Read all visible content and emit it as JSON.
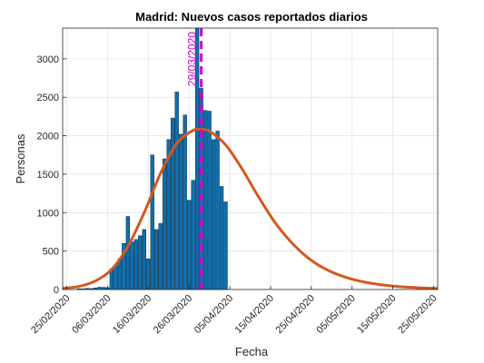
{
  "chart_data": {
    "type": "bar",
    "title": "Madrid: Nuevos casos reportados diarios",
    "xlabel": "Fecha",
    "ylabel": "Personas",
    "ylim": [
      0,
      3400
    ],
    "grid": true,
    "x_ticks": [
      "25/02/2020",
      "06/03/2020",
      "16/03/2020",
      "26/03/2020",
      "05/04/2020",
      "15/04/2020",
      "25/04/2020",
      "05/05/2020",
      "15/05/2020",
      "25/05/2020"
    ],
    "y_ticks": [
      0,
      500,
      1000,
      1500,
      2000,
      2500,
      3000
    ],
    "bars": {
      "color": "#0f6faf",
      "x": [
        "28/02/2020",
        "29/02/2020",
        "01/03/2020",
        "02/03/2020",
        "03/03/2020",
        "04/03/2020",
        "05/03/2020",
        "06/03/2020",
        "07/03/2020",
        "08/03/2020",
        "09/03/2020",
        "10/03/2020",
        "11/03/2020",
        "12/03/2020",
        "13/03/2020",
        "14/03/2020",
        "15/03/2020",
        "16/03/2020",
        "17/03/2020",
        "18/03/2020",
        "19/03/2020",
        "20/03/2020",
        "21/03/2020",
        "22/03/2020",
        "23/03/2020",
        "24/03/2020",
        "25/03/2020",
        "26/03/2020",
        "27/03/2020",
        "28/03/2020",
        "29/03/2020",
        "30/03/2020",
        "31/03/2020",
        "01/04/2020",
        "02/04/2020",
        "03/04/2020",
        "04/04/2020"
      ],
      "values": [
        10,
        8,
        15,
        12,
        20,
        30,
        28,
        25,
        270,
        310,
        400,
        600,
        950,
        620,
        650,
        700,
        780,
        400,
        1750,
        780,
        860,
        1700,
        1950,
        2230,
        2570,
        2020,
        2270,
        1160,
        1420,
        3400,
        2620,
        2330,
        2320,
        1950,
        2060,
        1340,
        1140
      ]
    },
    "fit_curve": {
      "color": "#d4581e",
      "peak_date": "29/03/2020",
      "peak_value": 2080,
      "x": [
        "24/02/2020",
        "28/02/2020",
        "03/03/2020",
        "07/03/2020",
        "11/03/2020",
        "15/03/2020",
        "19/03/2020",
        "23/03/2020",
        "27/03/2020",
        "29/03/2020",
        "31/03/2020",
        "04/04/2020",
        "08/04/2020",
        "12/04/2020",
        "16/04/2020",
        "20/04/2020",
        "24/04/2020",
        "28/04/2020",
        "02/05/2020",
        "06/05/2020",
        "10/05/2020",
        "14/05/2020",
        "18/05/2020",
        "22/05/2020",
        "26/05/2020"
      ],
      "values": [
        15,
        40,
        110,
        260,
        560,
        1000,
        1510,
        1900,
        2070,
        2080,
        2060,
        1880,
        1570,
        1210,
        880,
        620,
        420,
        280,
        185,
        120,
        78,
        50,
        32,
        20,
        13
      ]
    },
    "vline": {
      "date": "29/03/2020",
      "label": "29/03/2020",
      "color": "#d000d0"
    }
  }
}
